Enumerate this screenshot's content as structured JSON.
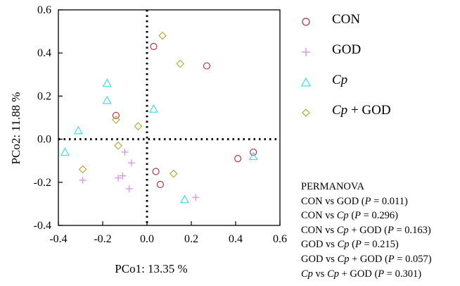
{
  "chart_data": {
    "type": "scatter",
    "xlabel": "PCo1:  13.35 %",
    "ylabel": "PCo2:  11.88 %",
    "xlim": [
      -0.4,
      0.6
    ],
    "ylim": [
      -0.4,
      0.6
    ],
    "xticks": [
      "-0.4",
      "-0.2",
      "0.0",
      "0.2",
      "0.4",
      "0.6"
    ],
    "yticks": [
      "0.6",
      "0.4",
      "0.2",
      "0.0",
      "-0.2",
      "-0.4"
    ],
    "reference_lines": {
      "x": 0,
      "y": 0,
      "style": "dotted"
    },
    "legend_position": "right",
    "series": [
      {
        "name": "CON",
        "marker": "circle",
        "color": "#b5354a",
        "points": [
          [
            0.03,
            0.43
          ],
          [
            0.27,
            0.34
          ],
          [
            -0.14,
            0.11
          ],
          [
            0.04,
            -0.15
          ],
          [
            0.06,
            -0.21
          ],
          [
            0.41,
            -0.09
          ],
          [
            0.48,
            -0.06
          ]
        ]
      },
      {
        "name": "GOD",
        "marker": "plus",
        "color": "#d98ae0",
        "points": [
          [
            -0.29,
            -0.19
          ],
          [
            -0.13,
            -0.18
          ],
          [
            -0.11,
            -0.17
          ],
          [
            -0.1,
            -0.06
          ],
          [
            -0.08,
            -0.23
          ],
          [
            -0.07,
            -0.11
          ],
          [
            0.22,
            -0.27
          ]
        ]
      },
      {
        "name": "Cp",
        "marker": "triangle",
        "color": "#3fe0e6",
        "points": [
          [
            -0.37,
            -0.06
          ],
          [
            -0.31,
            0.04
          ],
          [
            -0.18,
            0.26
          ],
          [
            -0.18,
            0.18
          ],
          [
            0.03,
            0.14
          ],
          [
            0.17,
            -0.28
          ],
          [
            0.48,
            -0.08
          ]
        ]
      },
      {
        "name": "Cp + GOD",
        "marker": "diamond",
        "color": "#b8ac3a",
        "points": [
          [
            -0.29,
            -0.14
          ],
          [
            -0.14,
            0.09
          ],
          [
            -0.13,
            -0.03
          ],
          [
            -0.04,
            0.06
          ],
          [
            0.07,
            0.48
          ],
          [
            0.12,
            -0.16
          ],
          [
            0.15,
            0.35
          ]
        ]
      }
    ]
  },
  "legend": {
    "items": [
      {
        "label": "CON",
        "italic_prefix": "",
        "rest": "CON"
      },
      {
        "label": "GOD",
        "italic_prefix": "",
        "rest": "GOD"
      },
      {
        "label": "Cp",
        "italic_prefix": "Cp",
        "rest": ""
      },
      {
        "label": "Cp + GOD",
        "italic_prefix": "Cp",
        "rest": " + GOD"
      }
    ]
  },
  "permanova": {
    "title": "PERMANOVA",
    "rows": [
      {
        "a": "CON vs GOD (",
        "p": "P",
        "b": " = 0.011)"
      },
      {
        "a": "CON vs ",
        "i1": "Cp",
        "a2": " (",
        "p": "P",
        "b": " = 0.296)"
      },
      {
        "a": "CON vs ",
        "i1": "Cp",
        "a2": " + GOD (",
        "p": "P",
        "b": " = 0.163)"
      },
      {
        "a": "GOD vs ",
        "i1": "Cp",
        "a2": " (",
        "p": "P",
        "b": " = 0.215)"
      },
      {
        "a": "GOD vs ",
        "i1": "Cp",
        "a2": " + GOD (",
        "p": "P",
        "b": " = 0.057)"
      },
      {
        "a": "",
        "i0": "Cp",
        "a0": " vs ",
        "i1": "Cp",
        "a2": " + GOD (",
        "p": "P",
        "b": " = 0.301)"
      }
    ]
  }
}
